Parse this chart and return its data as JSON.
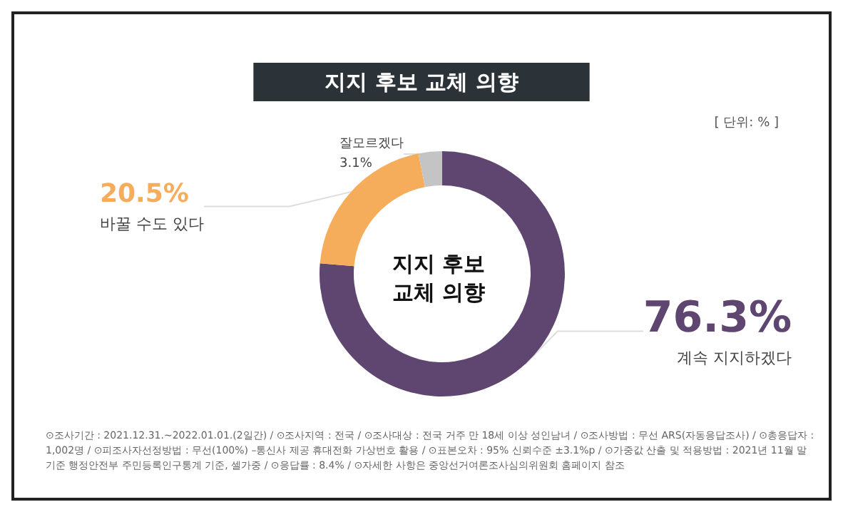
{
  "chart_data": {
    "type": "donut",
    "title": "지지 후보 교체 의향",
    "categories": [
      "계속 지지하겠다",
      "바꿀 수도 있다",
      "잘모르겠다"
    ],
    "values": [
      76.3,
      20.5,
      3.1
    ],
    "value_labels": [
      "76.3%",
      "20.5%",
      "3.1%"
    ],
    "colors": [
      "#5e4670",
      "#f6ad5b",
      "#c4c4c4"
    ],
    "legend": false,
    "annotations": [
      "지지 후보\n교체 의향",
      "[ 단위: % ]",
      "⊙조사기간 : 2021.12.31.~2022.01.01.(2일간) / ⊙조사지역 : 전국 / ⊙조사대상 : 전국 거주 만 18세 이상 성인남녀 / ⊙조사방법 : 무선 ARS(자동응답조사) / ⊙총응답자 : 1,002명 / ⊙피조사자선정방법 : 무선(100%) –통신사 제공 휴대전화 가상번호 활용 / ⊙표본오차 : 95% 신뢰수준 ±3.1%p / ⊙가중값 산출 및 적용방법 : 2021년 11월 말 기준 행정안전부 주민등록인구통계 기준, 셀가중 / ⊙응답률 : 8.4% / ⊙자세한 사항은 중앙선거여론조사심의위원회 홈페이지 참조"
    ]
  }
}
